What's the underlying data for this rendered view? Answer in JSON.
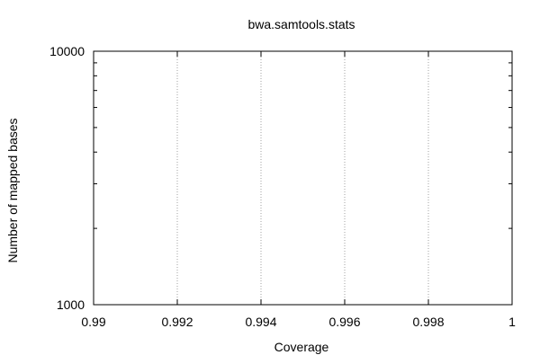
{
  "chart_data": {
    "type": "line",
    "title": "bwa.samtools.stats",
    "xlabel": "Coverage",
    "ylabel": "Number of mapped bases",
    "xlim": [
      0.99,
      1.0
    ],
    "ylim": [
      1000,
      10000
    ],
    "yscale": "log",
    "x_ticks": [
      "0.99",
      "0.992",
      "0.994",
      "0.996",
      "0.998",
      "1"
    ],
    "x_tick_values": [
      0.99,
      0.992,
      0.994,
      0.996,
      0.998,
      1.0
    ],
    "y_ticks": [
      "1000",
      "10000"
    ],
    "y_tick_values": [
      1000,
      10000
    ],
    "grid": "vertical-dotted",
    "series": []
  }
}
